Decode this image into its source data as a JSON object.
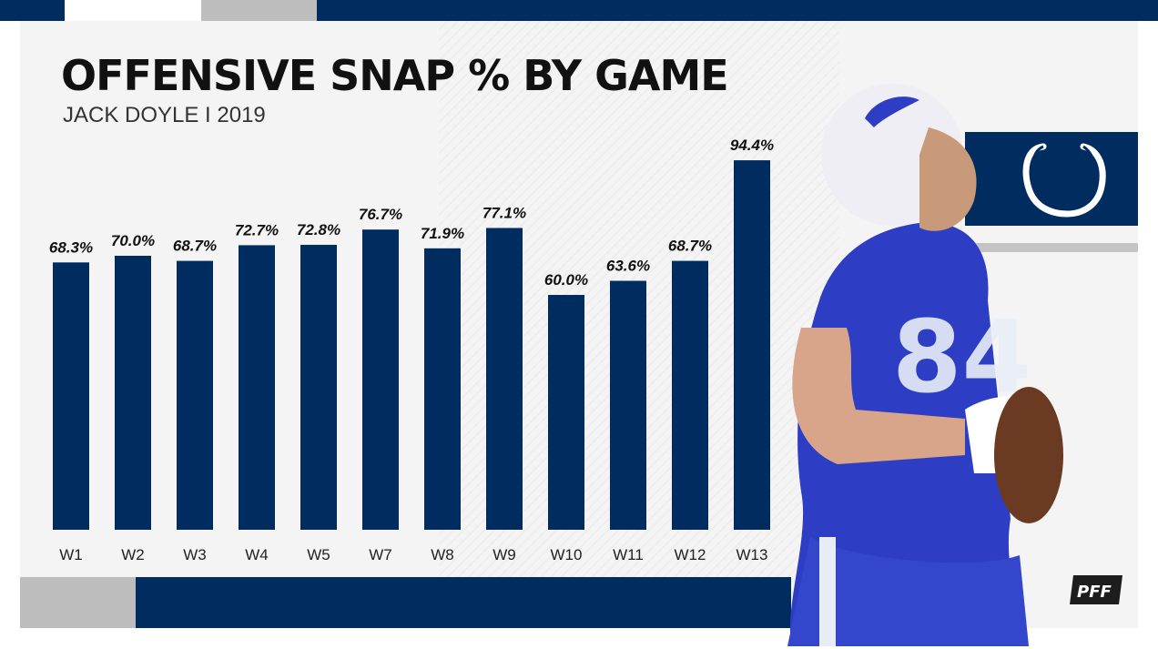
{
  "header": {
    "title": "OFFENSIVE SNAP % BY GAME",
    "subtitle": "JACK DOYLE I 2019"
  },
  "colors": {
    "bar": "#002c5f",
    "background": "#f4f4f4",
    "accent_gray": "#bdbdbd",
    "text": "#111111"
  },
  "icons": {
    "team_logo": "horseshoe-icon",
    "brand_logo": "pff-logo",
    "photo": "player-photo"
  },
  "chart_data": {
    "type": "bar",
    "title": "OFFENSIVE SNAP % BY GAME",
    "subtitle": "JACK DOYLE I 2019",
    "categories": [
      "W1",
      "W2",
      "W3",
      "W4",
      "W5",
      "W7",
      "W8",
      "W9",
      "W10",
      "W11",
      "W12",
      "W13"
    ],
    "values": [
      68.3,
      70.0,
      68.7,
      72.7,
      72.8,
      76.7,
      71.9,
      77.1,
      60.0,
      63.6,
      68.7,
      94.4
    ],
    "labels": [
      "68.3%",
      "70.0%",
      "68.7%",
      "72.7%",
      "72.8%",
      "76.7%",
      "71.9%",
      "77.1%",
      "60.0%",
      "63.6%",
      "68.7%",
      "94.4%"
    ],
    "xlabel": "",
    "ylabel": "",
    "ylim": [
      0,
      100
    ],
    "grid": false,
    "legend": "none"
  }
}
